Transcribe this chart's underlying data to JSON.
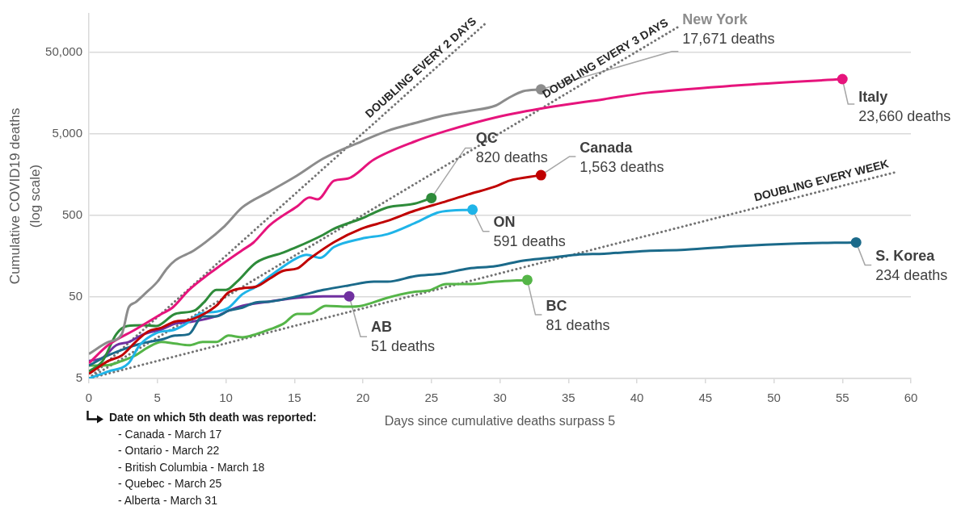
{
  "chart_data": {
    "type": "line",
    "xlabel": "Days since cumulative deaths surpass 5",
    "ylabel": "Cumulative COVID19 deaths\n(log scale)",
    "annotations": [
      "Date on which 5th death was reported:",
      "- Canada - March 17",
      "- Ontario - March 22",
      "- British Columbia - March 18",
      "- Quebec - March 25",
      "- Alberta - March 31"
    ],
    "xlim": [
      0,
      60
    ],
    "xticks": [
      0,
      5,
      10,
      15,
      20,
      25,
      30,
      35,
      40,
      45,
      50,
      55,
      60
    ],
    "ylim": [
      5,
      150000
    ],
    "yticks": [
      5,
      50,
      500,
      {
        "value": 5000,
        "label": "5,000"
      },
      {
        "value": 50000,
        "label": "50,000"
      }
    ],
    "log": "y",
    "grid": "y",
    "series": [
      {
        "name": "New York",
        "color": "#8c8c8c",
        "x": [
          0,
          1.4,
          2.4,
          2.9,
          3.4,
          4.1,
          5,
          5.7,
          6.3,
          7.7,
          9.9,
          11.2,
          13.2,
          15.2,
          17.1,
          19.9,
          21.8,
          23.8,
          25.8,
          27.7,
          29.7,
          30.7,
          31.7,
          33
        ],
        "values": [
          10,
          14,
          17.5,
          37,
          43,
          55,
          77,
          112,
          141,
          188,
          370,
          630,
          990,
          1550,
          2500,
          4060,
          5470,
          6830,
          8380,
          9560,
          11200,
          14070,
          16800,
          17671
        ],
        "value_labels": [
          null,
          null,
          null,
          null,
          null,
          null,
          null,
          null,
          null,
          null,
          null,
          null,
          null,
          null,
          null,
          null,
          null,
          null,
          null,
          null,
          null,
          null,
          null,
          "17,671 deaths"
        ]
      },
      {
        "name": "Italy",
        "color": "#e6147c",
        "x": [
          0,
          1.4,
          3.4,
          5.3,
          6.1,
          7.3,
          9.3,
          11.2,
          12,
          13.2,
          15.2,
          16.1,
          16.7,
          17.9,
          18.9,
          20.8,
          23.8,
          26.1,
          29.7,
          33.6,
          37.6,
          40.7,
          47.4,
          55
        ],
        "values": [
          7.7,
          12.8,
          20,
          31,
          37,
          61,
          112,
          188,
          232,
          380,
          648,
          831,
          790,
          1340,
          1420,
          2430,
          4060,
          5470,
          8000,
          10700,
          13400,
          16000,
          19800,
          23660
        ],
        "value_labels": [
          null,
          null,
          null,
          null,
          null,
          null,
          null,
          null,
          null,
          null,
          null,
          null,
          null,
          null,
          null,
          null,
          null,
          null,
          null,
          null,
          null,
          null,
          null,
          "23,660 deaths"
        ]
      },
      {
        "name": "Canada",
        "color": "#c00000",
        "x": [
          0,
          1.4,
          2.4,
          3.4,
          4.3,
          5.3,
          6.3,
          7.3,
          8.4,
          9.3,
          10.2,
          11.2,
          12.2,
          13.2,
          14.2,
          15.2,
          16.1,
          17.9,
          19.9,
          21.8,
          23.8,
          25.8,
          27.7,
          29.7,
          30.7,
          33
        ],
        "values": [
          5.7,
          8.2,
          9.6,
          14,
          18.8,
          21,
          25,
          26,
          31,
          39,
          57,
          64,
          67,
          84,
          105,
          112,
          147,
          236,
          345,
          430,
          575,
          723,
          910,
          1140,
          1340,
          1563
        ],
        "value_labels": [
          null,
          null,
          null,
          null,
          null,
          null,
          null,
          null,
          null,
          null,
          null,
          null,
          null,
          null,
          null,
          null,
          null,
          null,
          null,
          null,
          null,
          null,
          null,
          null,
          null,
          "1,563 deaths"
        ]
      },
      {
        "name": "QC",
        "color": "#2e8b3a",
        "x": [
          0,
          1,
          2,
          2.8,
          4,
          4.9,
          6.3,
          7.7,
          8.4,
          9.3,
          10,
          10.8,
          12.2,
          14.2,
          15.2,
          17.1,
          17.9,
          19.9,
          21.8,
          23.8,
          25
        ],
        "values": [
          6.1,
          8.2,
          17.5,
          22,
          22.5,
          22,
          31,
          34,
          43,
          61,
          61,
          77,
          132,
          176,
          206,
          290,
          345,
          460,
          630,
          700,
          820
        ],
        "value_labels": [
          null,
          null,
          null,
          null,
          null,
          null,
          null,
          null,
          null,
          null,
          null,
          null,
          null,
          null,
          null,
          null,
          null,
          null,
          null,
          null,
          "820 deaths"
        ]
      },
      {
        "name": "ON",
        "color": "#1fb4e8",
        "x": [
          0,
          1.4,
          2.9,
          3.7,
          4.9,
          6.3,
          7.1,
          8.1,
          9.3,
          10.2,
          11.2,
          12.2,
          13.2,
          15.2,
          15.9,
          16.9,
          17.9,
          19.9,
          21.8,
          23.8,
          25.4,
          25.8,
          28
        ],
        "values": [
          5,
          6.1,
          7.7,
          12.8,
          18,
          20,
          23.5,
          31,
          33,
          37,
          54,
          67,
          90,
          151,
          165,
          151,
          206,
          260,
          296,
          405,
          540,
          560,
          591
        ],
        "value_labels": [
          null,
          null,
          null,
          null,
          null,
          null,
          null,
          null,
          null,
          null,
          null,
          null,
          null,
          null,
          null,
          null,
          null,
          null,
          null,
          null,
          null,
          null,
          "591 deaths"
        ]
      },
      {
        "name": "S. Korea",
        "color": "#1b6a8a",
        "x": [
          0,
          1.4,
          2.4,
          3.4,
          4.3,
          5.3,
          6.3,
          7.3,
          8.3,
          9.3,
          10.2,
          11.2,
          12.2,
          13.2,
          15.2,
          17.1,
          18.9,
          20.8,
          21.8,
          23.8,
          25.8,
          27.7,
          29.7,
          31.7,
          33.6,
          35.6,
          37.6,
          40.7,
          43.5,
          47.4,
          51.3,
          56
        ],
        "values": [
          7.2,
          9.6,
          11.2,
          12.8,
          14,
          15,
          16.8,
          17.5,
          29,
          29,
          34,
          37,
          43,
          44,
          51,
          61,
          69,
          77,
          77,
          90,
          97,
          112,
          120,
          140,
          151,
          165,
          170,
          184,
          190,
          211,
          226,
          234
        ],
        "value_labels": [
          null,
          null,
          null,
          null,
          null,
          null,
          null,
          null,
          null,
          null,
          null,
          null,
          null,
          null,
          null,
          null,
          null,
          null,
          null,
          null,
          null,
          null,
          null,
          null,
          null,
          null,
          null,
          null,
          null,
          null,
          null,
          "234 deaths"
        ]
      },
      {
        "name": "BC",
        "color": "#55b548",
        "x": [
          0,
          1.4,
          2.4,
          3.4,
          4.3,
          5.3,
          6.3,
          7.3,
          8.3,
          9.3,
          10.2,
          11.2,
          12.2,
          13.2,
          14.2,
          15.2,
          16.1,
          17.3,
          18.9,
          19.9,
          21.8,
          23.8,
          24.8,
          26.1,
          27.7,
          29.7,
          32
        ],
        "values": [
          7.2,
          7.3,
          8.2,
          9.6,
          12,
          14,
          13.4,
          12.8,
          14,
          14,
          16.8,
          16,
          17.5,
          20,
          23.5,
          31,
          31,
          39,
          38,
          39,
          49,
          58,
          60,
          72,
          72,
          77,
          81
        ],
        "value_labels": [
          null,
          null,
          null,
          null,
          null,
          null,
          null,
          null,
          null,
          null,
          null,
          null,
          null,
          null,
          null,
          null,
          null,
          null,
          null,
          null,
          null,
          null,
          null,
          null,
          null,
          null,
          "81 deaths"
        ]
      },
      {
        "name": "AB",
        "color": "#7030a0",
        "x": [
          0,
          1,
          2,
          2.9,
          4,
          5.3,
          6.3,
          7.3,
          9.3,
          10.2,
          11.2,
          13.2,
          15.2,
          17.1,
          19
        ],
        "values": [
          8.2,
          9,
          12.8,
          14,
          17.5,
          20,
          23.5,
          24.6,
          29,
          34,
          39,
          44,
          49,
          51,
          51
        ],
        "value_labels": [
          null,
          null,
          null,
          null,
          null,
          null,
          null,
          null,
          null,
          null,
          null,
          null,
          null,
          null,
          "51 deaths"
        ]
      },
      {
        "name": "DOUBLING EVERY 2 DAYS",
        "color": "#737373",
        "line_style": "dotted",
        "x": [
          0,
          10,
          20,
          24,
          29
        ],
        "values": [
          5,
          160,
          5120,
          20500,
          116000
        ]
      },
      {
        "name": "DOUBLING EVERY 3 DAYS",
        "color": "#737373",
        "line_style": "dotted",
        "x": [
          0,
          15,
          30,
          36,
          40,
          43
        ],
        "values": [
          5,
          160,
          5120,
          20500,
          51600,
          103000
        ]
      },
      {
        "name": "DOUBLING EVERY WEEK",
        "color": "#737373",
        "line_style": "dotted",
        "x": [
          0,
          14,
          28,
          42,
          49,
          56,
          59
        ],
        "values": [
          5,
          20,
          80,
          320,
          640,
          1280,
          1720
        ]
      }
    ]
  }
}
